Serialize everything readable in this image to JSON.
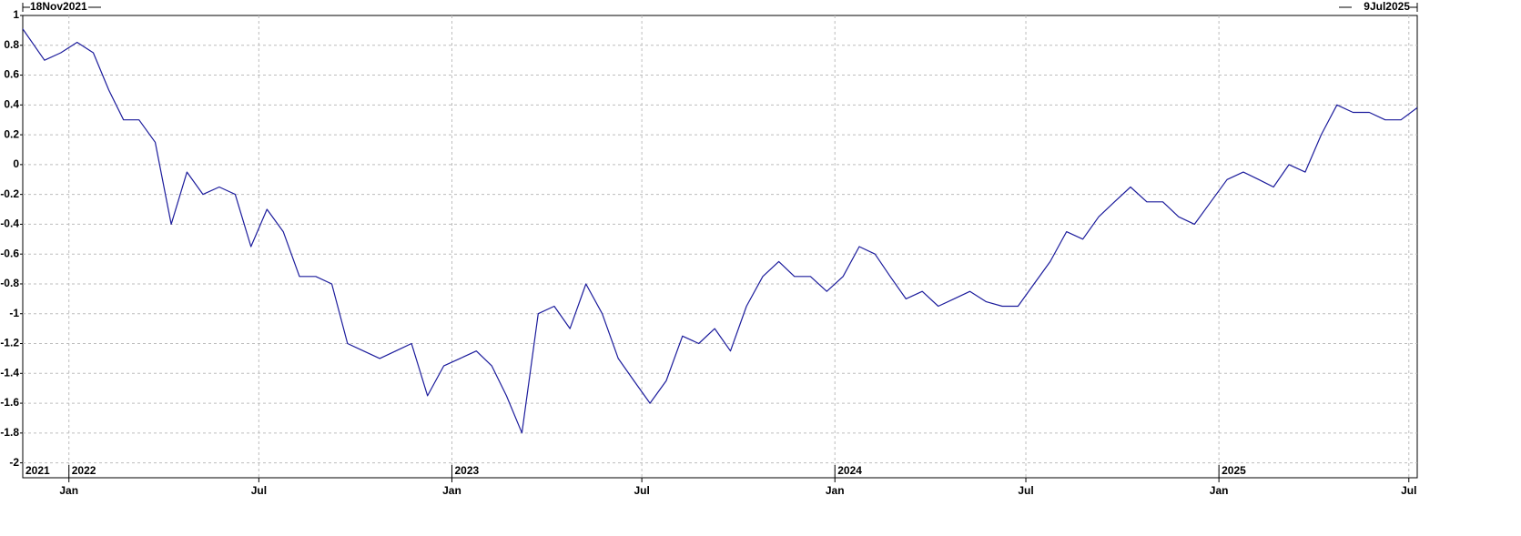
{
  "chart_data": {
    "type": "line",
    "xlim": [
      {
        "value": "2021-11-18",
        "label": "18Nov2021"
      },
      {
        "value": "2025-07-09",
        "label": "9Jul2025"
      }
    ],
    "ylim": [
      -2.1,
      1
    ],
    "yticks": [
      1,
      0.8,
      0.6,
      0.4,
      0.2,
      0,
      -0.2,
      -0.4,
      -0.6,
      -0.8,
      -1,
      -1.2,
      -1.4,
      -1.6,
      -1.8,
      -2
    ],
    "xticks": [
      {
        "value": "2022-01",
        "label": "Jan"
      },
      {
        "value": "2022-07",
        "label": "Jul"
      },
      {
        "value": "2023-01",
        "label": "Jan"
      },
      {
        "value": "2023-07",
        "label": "Jul"
      },
      {
        "value": "2024-01",
        "label": "Jan"
      },
      {
        "value": "2024-07",
        "label": "Jul"
      },
      {
        "value": "2025-01",
        "label": "Jan"
      },
      {
        "value": "2025-07",
        "label": "Jul"
      }
    ],
    "year_ticks": [
      {
        "value": "2021-11",
        "label": "2021"
      },
      {
        "value": "2022-01",
        "label": "2022"
      },
      {
        "value": "2023-01",
        "label": "2023"
      },
      {
        "value": "2024-01",
        "label": "2024"
      },
      {
        "value": "2025-01",
        "label": "2025"
      }
    ],
    "grid": true,
    "x": [
      "2021-11",
      "2021-12",
      "2021-12",
      "2022-01",
      "2022-01",
      "2022-02",
      "2022-02",
      "2022-03",
      "2022-03",
      "2022-04",
      "2022-04",
      "2022-05",
      "2022-05",
      "2022-06",
      "2022-06",
      "2022-07",
      "2022-07",
      "2022-08",
      "2022-08",
      "2022-09",
      "2022-09",
      "2022-10",
      "2022-10",
      "2022-11",
      "2022-11",
      "2022-12",
      "2022-12",
      "2023-01",
      "2023-01",
      "2023-02",
      "2023-02",
      "2023-03",
      "2023-03",
      "2023-04",
      "2023-04",
      "2023-05",
      "2023-05",
      "2023-06",
      "2023-06",
      "2023-07",
      "2023-07",
      "2023-08",
      "2023-08",
      "2023-09",
      "2023-09",
      "2023-10",
      "2023-10",
      "2023-11",
      "2023-11",
      "2023-12",
      "2023-12",
      "2024-01",
      "2024-01",
      "2024-02",
      "2024-02",
      "2024-03",
      "2024-03",
      "2024-04",
      "2024-04",
      "2024-05",
      "2024-05",
      "2024-06",
      "2024-06",
      "2024-07",
      "2024-07",
      "2024-08",
      "2024-08",
      "2024-09",
      "2024-09",
      "2024-10",
      "2024-10",
      "2024-11",
      "2024-11",
      "2024-12",
      "2024-12",
      "2025-01",
      "2025-01",
      "2025-02",
      "2025-02",
      "2025-03",
      "2025-03",
      "2025-04",
      "2025-04",
      "2025-05",
      "2025-05",
      "2025-06",
      "2025-06",
      "2025-07"
    ],
    "series": [
      {
        "color": "#1c1c9c",
        "values": [
          0.93,
          0.7,
          0.75,
          0.82,
          0.75,
          0.5,
          0.3,
          0.3,
          0.15,
          -0.4,
          -0.05,
          -0.2,
          -0.15,
          -0.2,
          -0.55,
          -0.3,
          -0.45,
          -0.75,
          -0.75,
          -0.8,
          -1.2,
          -1.25,
          -1.3,
          -1.25,
          -1.2,
          -1.55,
          -1.35,
          -1.3,
          -1.25,
          -1.35,
          -1.55,
          -1.8,
          -1.0,
          -0.95,
          -1.1,
          -0.8,
          -1.0,
          -1.3,
          -1.45,
          -1.6,
          -1.45,
          -1.15,
          -1.2,
          -1.1,
          -1.25,
          -0.95,
          -0.75,
          -0.65,
          -0.75,
          -0.75,
          -0.85,
          -0.75,
          -0.55,
          -0.6,
          -0.75,
          -0.9,
          -0.85,
          -0.95,
          -0.9,
          -0.85,
          -0.92,
          -0.95,
          -0.95,
          -0.8,
          -0.65,
          -0.45,
          -0.5,
          -0.35,
          -0.25,
          -0.15,
          -0.25,
          -0.25,
          -0.35,
          -0.4,
          -0.25,
          -0.1,
          -0.05,
          -0.1,
          -0.15,
          0.0,
          -0.05,
          0.2,
          0.4,
          0.35,
          0.35,
          0.3,
          0.3,
          0.42
        ]
      }
    ]
  }
}
